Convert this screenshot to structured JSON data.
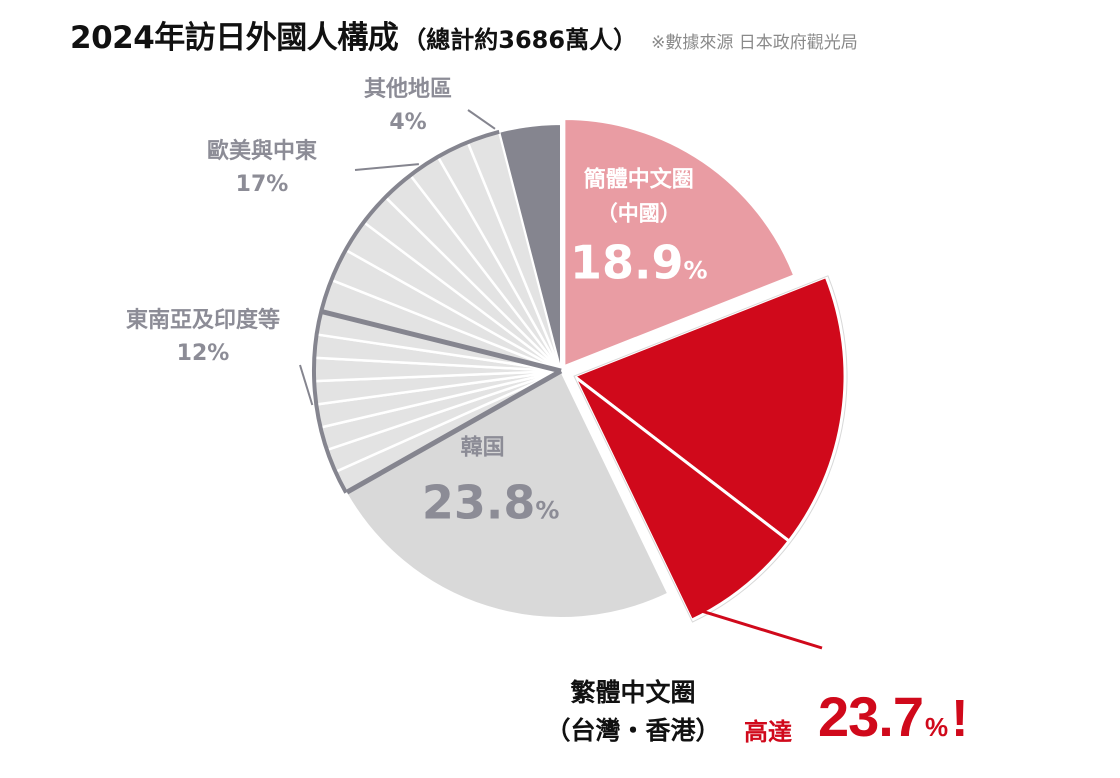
{
  "header": {
    "title": "2024年訪日外國人構成",
    "subtitle": "（總計約3686萬人）",
    "source": "※數據來源 日本政府觀光局"
  },
  "colors": {
    "china": "#e99ca3",
    "traditional": "#d0091b",
    "korea": "#d9d9d9",
    "light_gray": "#e3e3e3",
    "dark_gray": "#85858f",
    "label_gray": "#8c8c96",
    "white": "#ffffff"
  },
  "chart_data": {
    "type": "pie",
    "title": "2024年訪日外國人構成",
    "subtitle": "（總計約3686萬人）",
    "unit": "%",
    "start": "12 o'clock, clockwise",
    "slices": [
      {
        "name": "簡體中文圈",
        "sub": "（中國）",
        "value": 18.9,
        "pct_text": "18.9",
        "pct_unit": "%",
        "label_style": "inside"
      },
      {
        "name": "繁體中文圈",
        "sub": "（台灣・香港）",
        "value": 23.7,
        "pct_text": "23.7",
        "pct_unit": "%",
        "exploded": true,
        "sub_slice_values": [
          16.3,
          7.4
        ]
      },
      {
        "name": "韓国",
        "value": 23.8,
        "pct_text": "23.8",
        "pct_unit": "%",
        "label_style": "inside"
      },
      {
        "name": "東南亞及印度等",
        "value": 12,
        "pct_text": "12%",
        "label_style": "outside",
        "sub_slices": 8
      },
      {
        "name": "歐美與中東",
        "value": 17,
        "pct_text": "17%",
        "label_style": "outside",
        "sub_slices": 8
      },
      {
        "name": "其他地區",
        "value": 4,
        "pct_text": "4%",
        "label_style": "outside"
      }
    ]
  },
  "callout": {
    "name_line1": "繁體中文圈",
    "name_line2": "（台灣・香港）",
    "prefix": "高達",
    "value": "23.7",
    "unit": "%",
    "exclaim": "!"
  }
}
